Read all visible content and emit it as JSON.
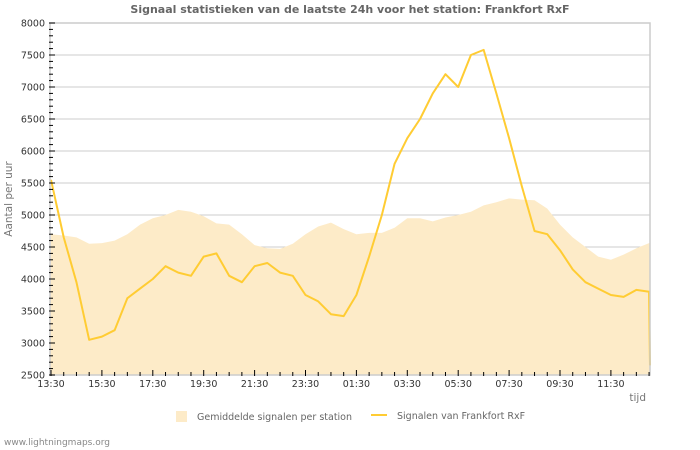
{
  "title": "Signaal statistieken van de laatste 24h voor het station: Frankfort RxF",
  "footer": "www.lightningmaps.org",
  "colors": {
    "area": "#fdebc8",
    "line": "#ffcc33",
    "grid": "#cccccc",
    "frame": "#cccccc"
  },
  "legend": {
    "area_label": "Gemiddelde signalen per station",
    "line_label": "Signalen van Frankfort RxF"
  },
  "chart_data": {
    "type": "line",
    "title": "Signaal statistieken van de laatste 24h voor het station: Frankfort RxF",
    "xlabel": "tijd",
    "ylabel": "Aantal per uur",
    "ylim": [
      2500,
      8000
    ],
    "yticks": [
      2500,
      3000,
      3500,
      4000,
      4500,
      5000,
      5500,
      6000,
      6500,
      7000,
      7500,
      8000
    ],
    "xticks": [
      "13:30",
      "15:30",
      "17:30",
      "19:30",
      "21:30",
      "23:30",
      "01:30",
      "03:30",
      "05:30",
      "07:30",
      "09:30",
      "11:30"
    ],
    "grid": true,
    "legend_position": "bottom",
    "x": [
      "13:30",
      "14:00",
      "14:30",
      "15:00",
      "15:30",
      "16:00",
      "16:30",
      "17:00",
      "17:30",
      "18:00",
      "18:30",
      "19:00",
      "19:30",
      "20:00",
      "20:30",
      "21:00",
      "21:30",
      "22:00",
      "22:30",
      "23:00",
      "23:30",
      "00:00",
      "00:30",
      "01:00",
      "01:30",
      "02:00",
      "02:30",
      "03:00",
      "03:30",
      "04:00",
      "04:30",
      "05:00",
      "05:30",
      "06:00",
      "06:30",
      "07:00",
      "07:30",
      "08:00",
      "08:30",
      "09:00",
      "09:30",
      "10:00",
      "10:30",
      "11:00",
      "11:30",
      "12:00",
      "12:30",
      "13:00"
    ],
    "series": [
      {
        "name": "Gemiddelde signalen per station",
        "type": "area",
        "values": [
          4700,
          4680,
          4650,
          4550,
          4560,
          4600,
          4700,
          4850,
          4950,
          5000,
          5080,
          5050,
          4980,
          4870,
          4850,
          4700,
          4530,
          4480,
          4470,
          4550,
          4700,
          4820,
          4880,
          4780,
          4700,
          4720,
          4720,
          4800,
          4950,
          4950,
          4900,
          4960,
          5000,
          5050,
          5150,
          5200,
          5260,
          5240,
          5230,
          5100,
          4850,
          4650,
          4500,
          4350,
          4300,
          4380,
          4480,
          4560
        ]
      },
      {
        "name": "Signalen van Frankfort RxF",
        "type": "line",
        "values": [
          5550,
          4650,
          3950,
          3050,
          3100,
          3200,
          3700,
          3850,
          4000,
          4200,
          4100,
          4050,
          4350,
          4400,
          4050,
          3950,
          4200,
          4250,
          4100,
          4050,
          3750,
          3650,
          3450,
          3420,
          3750,
          4350,
          5000,
          5800,
          6200,
          6500,
          6900,
          7200,
          7000,
          7500,
          7580,
          6900,
          6200,
          5450,
          4750,
          4700,
          4450,
          4150,
          3950,
          3850,
          3750,
          3720,
          3830,
          3800
        ]
      }
    ]
  }
}
